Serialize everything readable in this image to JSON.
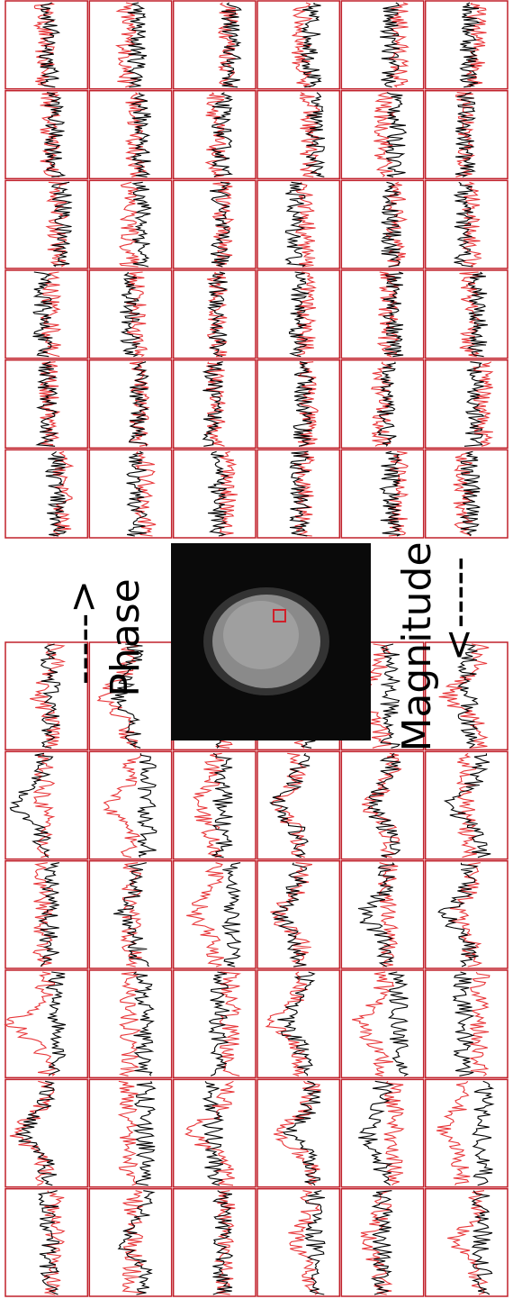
{
  "labels": {
    "phase_arrow": "----->",
    "phase": "Phase",
    "magnitude": "Magnitude",
    "magnitude_arrow": "<-----"
  }
}
